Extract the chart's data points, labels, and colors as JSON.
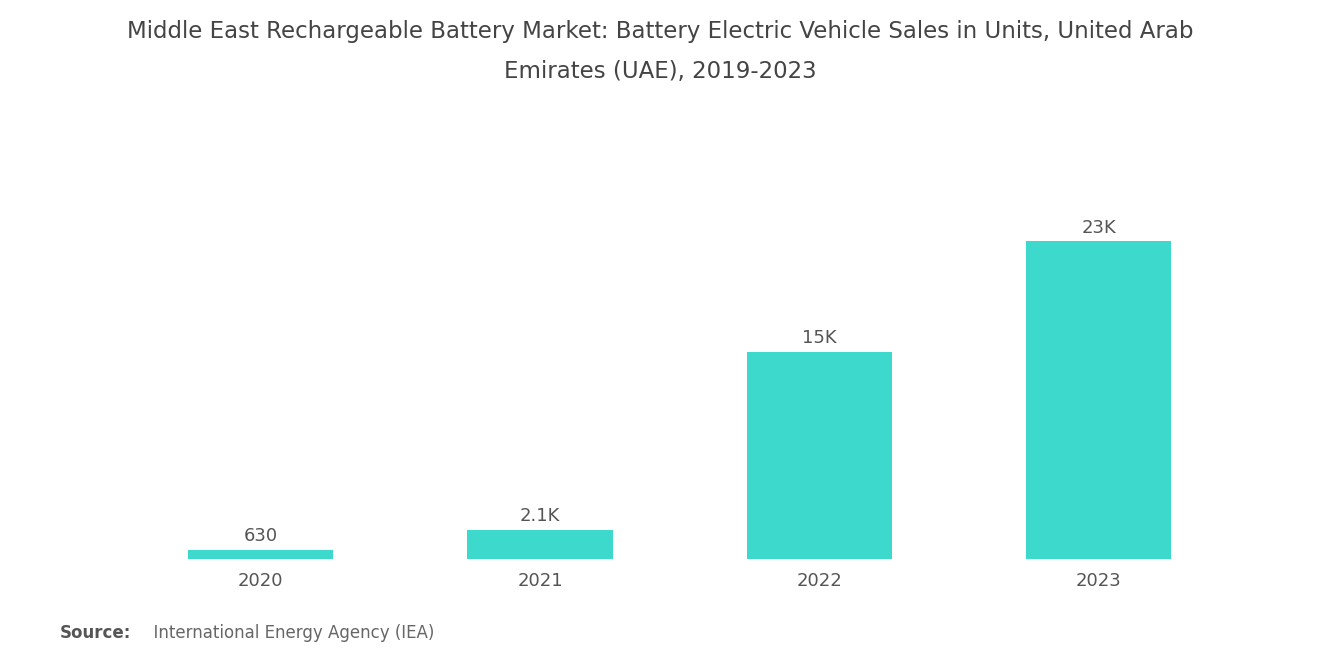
{
  "title_line1": "Middle East Rechargeable Battery Market: Battery Electric Vehicle Sales in Units, United Arab",
  "title_line2": "Emirates (UAE), 2019-2023",
  "categories": [
    "2020",
    "2021",
    "2022",
    "2023"
  ],
  "values": [
    630,
    2100,
    15000,
    23000
  ],
  "labels": [
    "630",
    "2.1K",
    "15K",
    "23K"
  ],
  "bar_color": "#3DD9CC",
  "background_color": "#ffffff",
  "source_bold": "Source:",
  "source_text": "  International Energy Agency (IEA)",
  "title_fontsize": 16.5,
  "label_fontsize": 13,
  "tick_fontsize": 13,
  "source_fontsize": 12,
  "ylim": [
    0,
    27000
  ],
  "bar_width": 0.52
}
